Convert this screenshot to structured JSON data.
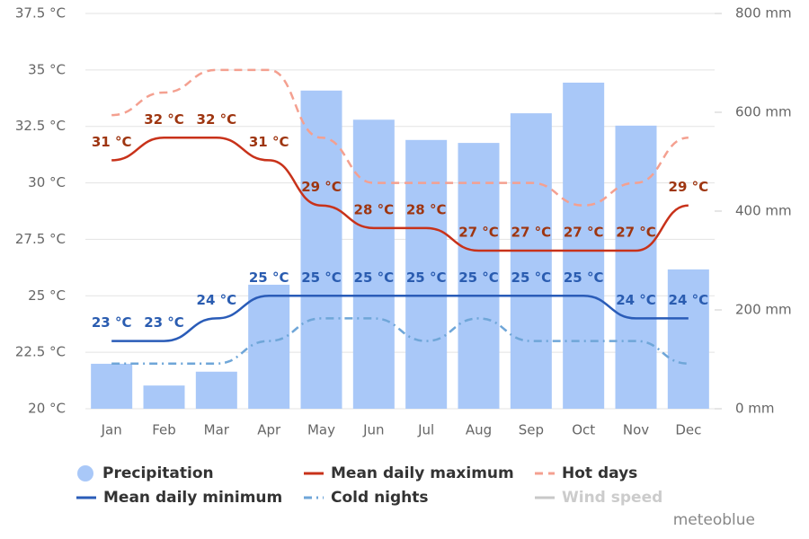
{
  "chart_data": {
    "type": "combo",
    "categories": [
      "Jan",
      "Feb",
      "Mar",
      "Apr",
      "May",
      "Jun",
      "Jul",
      "Aug",
      "Sep",
      "Oct",
      "Nov",
      "Dec"
    ],
    "ylim": [
      20,
      37.5
    ],
    "yticks": [
      {
        "value": 20,
        "label": "20 °C"
      },
      {
        "value": 22.5,
        "label": "22.5 °C"
      },
      {
        "value": 25,
        "label": "25 °C"
      },
      {
        "value": 27.5,
        "label": "27.5 °C"
      },
      {
        "value": 30,
        "label": "30 °C"
      },
      {
        "value": 32.5,
        "label": "32.5 °C"
      },
      {
        "value": 35,
        "label": "35 °C"
      },
      {
        "value": 37.5,
        "label": "37.5 °C"
      }
    ],
    "y2lim": [
      0,
      800
    ],
    "y2ticks": [
      {
        "value": 0,
        "label": "0 mm"
      },
      {
        "value": 200,
        "label": "200 mm"
      },
      {
        "value": 400,
        "label": "400 mm"
      },
      {
        "value": 600,
        "label": "600 mm"
      },
      {
        "value": 800,
        "label": "800 mm"
      }
    ],
    "grid": true,
    "series": [
      {
        "name": "Precipitation",
        "type": "bar",
        "axis": "y2",
        "color": "#a9c8f8",
        "values": [
          91,
          47,
          75,
          251,
          644,
          585,
          544,
          538,
          598,
          660,
          573,
          282
        ]
      },
      {
        "name": "Mean daily maximum",
        "type": "line",
        "color": "#c8321a",
        "label_color": "#9e3510",
        "dash": "solid",
        "values": [
          31,
          32,
          32,
          31,
          29,
          28,
          28,
          27,
          27,
          27,
          27,
          29
        ],
        "value_labels": [
          "31 °C",
          "32 °C",
          "32 °C",
          "31 °C",
          "29 °C",
          "28 °C",
          "28 °C",
          "27 °C",
          "27 °C",
          "27 °C",
          "27 °C",
          "29 °C"
        ]
      },
      {
        "name": "Hot days",
        "type": "line",
        "color": "#f4a090",
        "dash": "dashed",
        "values": [
          33,
          34,
          35,
          35,
          32,
          30,
          30,
          30,
          30,
          29,
          30,
          32
        ]
      },
      {
        "name": "Mean daily minimum",
        "type": "line",
        "color": "#2a5cb8",
        "label_color": "#2a5cb0",
        "dash": "solid",
        "values": [
          23,
          23,
          24,
          25,
          25,
          25,
          25,
          25,
          25,
          25,
          24,
          24
        ],
        "value_labels": [
          "23 °C",
          "23 °C",
          "24 °C",
          "25 °C",
          "25 °C",
          "25 °C",
          "25 °C",
          "25 °C",
          "25 °C",
          "25 °C",
          "24 °C",
          "24 °C"
        ]
      },
      {
        "name": "Cold nights",
        "type": "line",
        "color": "#6fa6d8",
        "dash": "dashdot",
        "values": [
          22,
          22,
          22,
          23,
          24,
          24,
          23,
          24,
          23,
          23,
          23,
          22
        ]
      },
      {
        "name": "Wind speed",
        "type": "line",
        "color": "#c8c8c8",
        "hidden": true,
        "dash": "solid",
        "values": [
          null,
          null,
          null,
          null,
          null,
          null,
          null,
          null,
          null,
          null,
          null,
          null
        ]
      }
    ],
    "credit": "meteoblue"
  }
}
